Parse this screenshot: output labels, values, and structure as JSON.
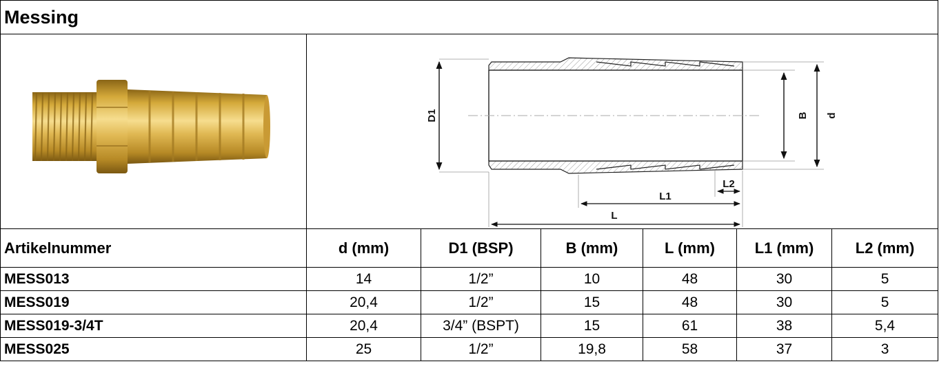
{
  "section_title": "Messing",
  "drawing_labels": {
    "D1": "D1",
    "B": "B",
    "d": "d",
    "L1": "L1",
    "L2": "L2",
    "L": "L"
  },
  "colors": {
    "brass_light": "#f1d27a",
    "brass_mid": "#d4a93a",
    "brass_dark": "#8a6516",
    "line": "#000000"
  },
  "table": {
    "headers": [
      "Artikelnummer",
      "d (mm)",
      "D1 (BSP)",
      "B (mm)",
      "L (mm)",
      "L1 (mm)",
      "L2 (mm)"
    ],
    "rows": [
      [
        "MESS013",
        "14",
        "1/2”",
        "10",
        "48",
        "30",
        "5"
      ],
      [
        "MESS019",
        "20,4",
        "1/2”",
        "15",
        "48",
        "30",
        "5"
      ],
      [
        "MESS019-3/4T",
        "20,4",
        "3/4” (BSPT)",
        "15",
        "61",
        "38",
        "5,4"
      ],
      [
        "MESS025",
        "25",
        "1/2”",
        "19,8",
        "58",
        "37",
        "3"
      ]
    ]
  }
}
